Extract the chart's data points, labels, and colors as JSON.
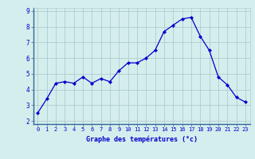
{
  "hours": [
    0,
    1,
    2,
    3,
    4,
    5,
    6,
    7,
    8,
    9,
    10,
    11,
    12,
    13,
    14,
    15,
    16,
    17,
    18,
    19,
    20,
    21,
    22,
    23
  ],
  "temps": [
    2.5,
    3.4,
    4.4,
    4.5,
    4.4,
    4.8,
    4.4,
    4.7,
    4.5,
    5.2,
    5.7,
    5.7,
    6.0,
    6.5,
    7.7,
    8.1,
    8.5,
    8.6,
    7.4,
    6.5,
    4.8,
    4.3,
    3.5,
    3.2
  ],
  "line_color": "#0000cc",
  "bg_color": "#d4eeed",
  "grid_color": "#b0cccc",
  "xlabel": "Graphe des températures (°c)",
  "xlabel_color": "#0000cc",
  "tick_color": "#0000cc",
  "ylim": [
    1.8,
    9.2
  ],
  "yticks": [
    2,
    3,
    4,
    5,
    6,
    7,
    8,
    9
  ],
  "spine_color": "#336699",
  "bottom_bar_color": "#3355aa"
}
